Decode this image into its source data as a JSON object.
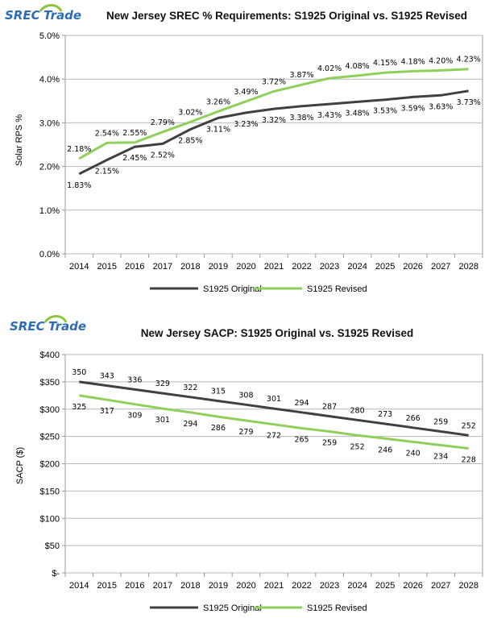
{
  "logo": {
    "brand_left": "SREC",
    "brand_right": "Trade",
    "colors": {
      "blue": "#2e6db4",
      "green": "#8cc63f"
    }
  },
  "chart_data": [
    {
      "type": "line",
      "title": "New Jersey SREC % Requirements: S1925 Original vs. S1925 Revised",
      "xlabel": "",
      "ylabel": "Solar RPS %",
      "x": [
        "2014",
        "2015",
        "2016",
        "2017",
        "2018",
        "2019",
        "2020",
        "2021",
        "2022",
        "2023",
        "2024",
        "2025",
        "2026",
        "2027",
        "2028"
      ],
      "ylim": [
        0,
        5
      ],
      "yticks": [
        0,
        1,
        2,
        3,
        4,
        5
      ],
      "ytick_labels": [
        "0.0%",
        "1.0%",
        "2.0%",
        "3.0%",
        "4.0%",
        "5.0%"
      ],
      "grid": "horizontal",
      "legend_placement": "bottom",
      "series": [
        {
          "name": "S1925 Original",
          "color": "#404040",
          "values": [
            1.83,
            2.15,
            2.45,
            2.52,
            2.85,
            3.11,
            3.23,
            3.32,
            3.38,
            3.43,
            3.48,
            3.53,
            3.59,
            3.63,
            3.73
          ],
          "labels": [
            "1.83%",
            "2.15%",
            "2.45%",
            "2.52%",
            "2.85%",
            "3.11%",
            "3.23%",
            "3.32%",
            "3.38%",
            "3.43%",
            "3.48%",
            "3.53%",
            "3.59%",
            "3.63%",
            "3.73%"
          ],
          "label_position": "below"
        },
        {
          "name": "S1925 Revised",
          "color": "#8ed05a",
          "values": [
            2.18,
            2.54,
            2.55,
            2.79,
            3.02,
            3.26,
            3.49,
            3.72,
            3.87,
            4.02,
            4.08,
            4.15,
            4.18,
            4.2,
            4.23
          ],
          "labels": [
            "2.18%",
            "2.54%",
            "2.55%",
            "2.79%",
            "3.02%",
            "3.26%",
            "3.49%",
            "3.72%",
            "3.87%",
            "4.02%",
            "4.08%",
            "4.15%",
            "4.18%",
            "4.20%",
            "4.23%"
          ],
          "label_position": "above"
        }
      ]
    },
    {
      "type": "line",
      "title": "New Jersey SACP: S1925 Original vs. S1925 Revised",
      "xlabel": "",
      "ylabel": "SACP ($)",
      "x": [
        "2014",
        "2015",
        "2016",
        "2017",
        "2018",
        "2019",
        "2020",
        "2021",
        "2022",
        "2023",
        "2024",
        "2025",
        "2026",
        "2027",
        "2028"
      ],
      "ylim": [
        0,
        400
      ],
      "yticks": [
        0,
        50,
        100,
        150,
        200,
        250,
        300,
        350,
        400
      ],
      "ytick_labels": [
        "$-",
        "$50",
        "$100",
        "$150",
        "$200",
        "$250",
        "$300",
        "$350",
        "$400"
      ],
      "grid": "horizontal",
      "legend_placement": "bottom",
      "series": [
        {
          "name": "S1925 Original",
          "color": "#404040",
          "values": [
            350,
            343,
            336,
            329,
            322,
            315,
            308,
            301,
            294,
            287,
            280,
            273,
            266,
            259,
            252
          ],
          "labels": [
            "350",
            "343",
            "336",
            "329",
            "322",
            "315",
            "308",
            "301",
            "294",
            "287",
            "280",
            "273",
            "266",
            "259",
            "252"
          ],
          "label_position": "above"
        },
        {
          "name": "S1925 Revised",
          "color": "#8ed05a",
          "values": [
            325,
            317,
            309,
            301,
            294,
            286,
            279,
            272,
            265,
            259,
            252,
            246,
            240,
            234,
            228
          ],
          "labels": [
            "325",
            "317",
            "309",
            "301",
            "294",
            "286",
            "279",
            "272",
            "265",
            "259",
            "252",
            "246",
            "240",
            "234",
            "228"
          ],
          "label_position": "below"
        }
      ]
    }
  ]
}
